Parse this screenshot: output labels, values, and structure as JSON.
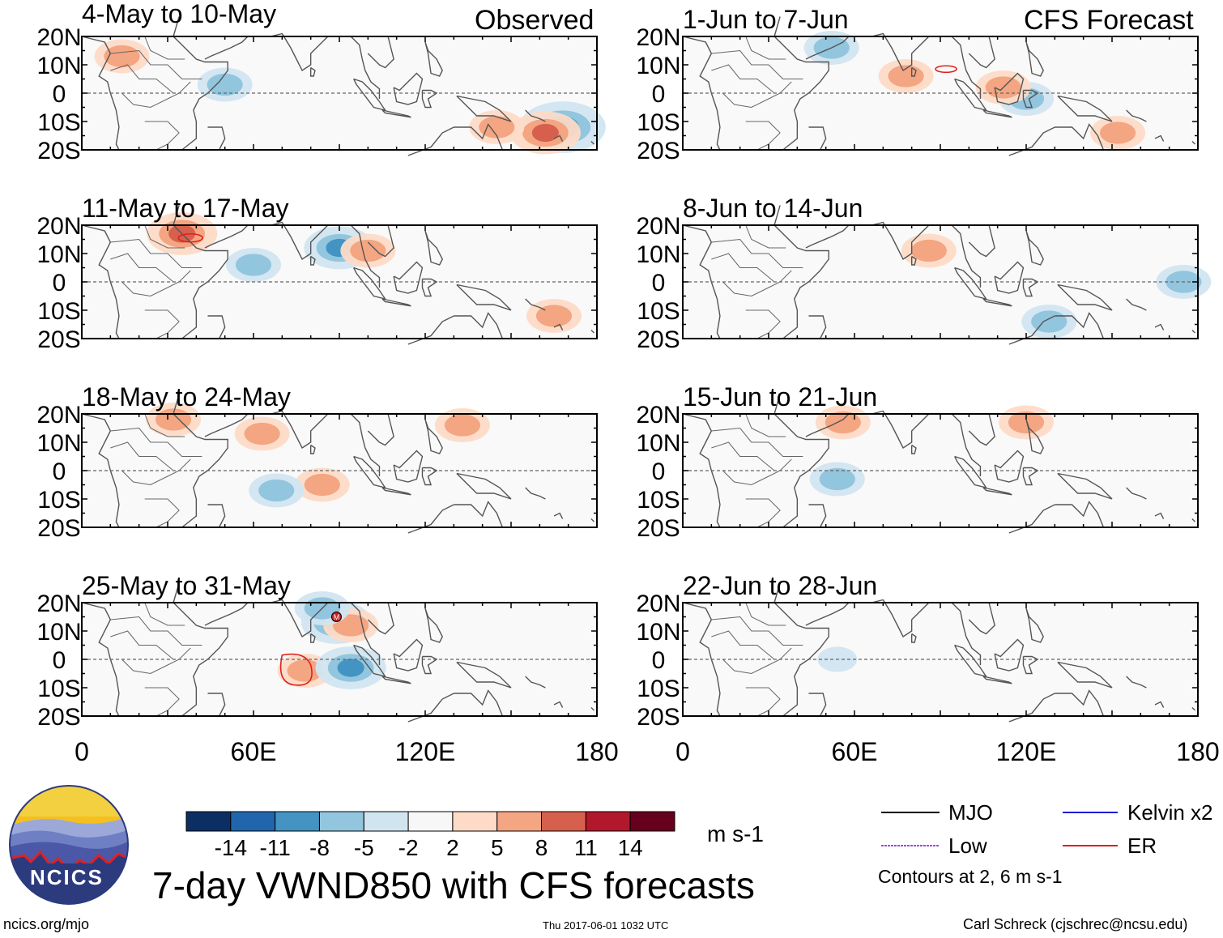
{
  "title": "7-day VWND850 with CFS forecasts",
  "left_column_label": "Observed",
  "right_column_label": "CFS Forecast",
  "logo_text": "NCICS",
  "url": "ncics.org/mjo",
  "timestamp": "Thu 2017-06-01 1032 UTC",
  "credit": "Carl Schreck (cjschrec@ncsu.edu)",
  "units": "m s-1",
  "contour_note": "Contours at 2, 6 m s-1",
  "line_legend": [
    {
      "label": "MJO",
      "color": "#000000"
    },
    {
      "label": "Kelvin x2",
      "color": "#1d1dd6"
    },
    {
      "label": "Low",
      "color": "#9a4be0"
    },
    {
      "label": "ER",
      "color": "#e0201d"
    }
  ],
  "colorbar": {
    "colors": [
      "#0c2f63",
      "#2166ac",
      "#4393c3",
      "#92c5de",
      "#d1e5f0",
      "#f7f7f7",
      "#fddbc7",
      "#f4a582",
      "#d6604d",
      "#b2182b",
      "#67001f"
    ],
    "labels": [
      "-14",
      "-11",
      "-8",
      "-5",
      "-2",
      "2",
      "5",
      "8",
      "11",
      "14"
    ]
  },
  "map_labels": {
    "ocean_note": "M"
  },
  "chart_data": [
    {
      "type": "heatmap",
      "panel": "observed",
      "period": "4-May to 10-May",
      "x_ticks": [
        "0",
        "60E",
        "120E",
        "180"
      ],
      "y_ticks": [
        "20N",
        "10N",
        "0",
        "10S",
        "20S"
      ],
      "xlim": [
        0,
        180
      ],
      "ylim": [
        -20,
        20
      ],
      "features": [
        {
          "sign": "neg",
          "lon": 168,
          "lat": -12,
          "value": -11
        },
        {
          "sign": "pos",
          "lon": 162,
          "lat": -14,
          "value": 8
        },
        {
          "sign": "neg",
          "lon": 50,
          "lat": 3,
          "value": -5
        },
        {
          "sign": "pos",
          "lon": 145,
          "lat": -12,
          "value": 5
        },
        {
          "sign": "pos",
          "lon": 14,
          "lat": 13,
          "value": 5
        }
      ]
    },
    {
      "type": "heatmap",
      "panel": "observed",
      "period": "11-May to 17-May",
      "x_ticks": [
        "0",
        "60E",
        "120E",
        "180"
      ],
      "y_ticks": [
        "20N",
        "10N",
        "0",
        "10S",
        "20S"
      ],
      "xlim": [
        0,
        180
      ],
      "ylim": [
        -20,
        20
      ],
      "features": [
        {
          "sign": "pos",
          "lon": 35,
          "lat": 17,
          "value": 8
        },
        {
          "sign": "neg",
          "lon": 90,
          "lat": 12,
          "value": -8
        },
        {
          "sign": "pos",
          "lon": 100,
          "lat": 11,
          "value": 5
        },
        {
          "sign": "neg",
          "lon": 60,
          "lat": 6,
          "value": -5
        },
        {
          "sign": "pos",
          "lon": 165,
          "lat": -12,
          "value": 5
        }
      ]
    },
    {
      "type": "heatmap",
      "panel": "observed",
      "period": "18-May to 24-May",
      "x_ticks": [
        "0",
        "60E",
        "120E",
        "180"
      ],
      "y_ticks": [
        "20N",
        "10N",
        "0",
        "10S",
        "20S"
      ],
      "xlim": [
        0,
        180
      ],
      "ylim": [
        -20,
        20
      ],
      "features": [
        {
          "sign": "pos",
          "lon": 84,
          "lat": -5,
          "value": 5
        },
        {
          "sign": "pos",
          "lon": 63,
          "lat": 13,
          "value": 5
        },
        {
          "sign": "pos",
          "lon": 133,
          "lat": 16,
          "value": 5
        },
        {
          "sign": "neg",
          "lon": 68,
          "lat": -7,
          "value": -5
        },
        {
          "sign": "pos",
          "lon": 32,
          "lat": 18,
          "value": 5
        }
      ]
    },
    {
      "type": "heatmap",
      "panel": "observed",
      "period": "25-May to 31-May",
      "x_ticks": [
        "0",
        "60E",
        "120E",
        "180"
      ],
      "y_ticks": [
        "20N",
        "10N",
        "0",
        "10S",
        "20S"
      ],
      "xlim": [
        0,
        180
      ],
      "ylim": [
        -20,
        20
      ],
      "features": [
        {
          "sign": "pos",
          "lon": 78,
          "lat": -4,
          "value": 5
        },
        {
          "sign": "neg",
          "lon": 94,
          "lat": -3,
          "value": -8
        },
        {
          "sign": "neg",
          "lon": 89,
          "lat": 13,
          "value": -8
        },
        {
          "sign": "pos",
          "lon": 94,
          "lat": 12,
          "value": 5
        },
        {
          "sign": "neg",
          "lon": 84,
          "lat": 18,
          "value": -5
        }
      ]
    },
    {
      "type": "heatmap",
      "panel": "forecast",
      "period": "1-Jun to 7-Jun",
      "x_ticks": [
        "0",
        "60E",
        "120E",
        "180"
      ],
      "y_ticks": [
        "20N",
        "10N",
        "0",
        "10S",
        "20S"
      ],
      "xlim": [
        0,
        180
      ],
      "ylim": [
        -20,
        20
      ],
      "features": [
        {
          "sign": "pos",
          "lon": 152,
          "lat": -14,
          "value": 5
        },
        {
          "sign": "neg",
          "lon": 120,
          "lat": -2,
          "value": -5
        },
        {
          "sign": "pos",
          "lon": 112,
          "lat": 2,
          "value": 5
        },
        {
          "sign": "neg",
          "lon": 52,
          "lat": 16,
          "value": -5
        },
        {
          "sign": "pos",
          "lon": 78,
          "lat": 6,
          "value": 5
        }
      ]
    },
    {
      "type": "heatmap",
      "panel": "forecast",
      "period": "8-Jun to 14-Jun",
      "x_ticks": [
        "0",
        "60E",
        "120E",
        "180"
      ],
      "y_ticks": [
        "20N",
        "10N",
        "0",
        "10S",
        "20S"
      ],
      "xlim": [
        0,
        180
      ],
      "ylim": [
        -20,
        20
      ],
      "features": [
        {
          "sign": "pos",
          "lon": 86,
          "lat": 11,
          "value": 5
        },
        {
          "sign": "neg",
          "lon": 128,
          "lat": -14,
          "value": -5
        },
        {
          "sign": "neg",
          "lon": 175,
          "lat": 0,
          "value": -5
        }
      ]
    },
    {
      "type": "heatmap",
      "panel": "forecast",
      "period": "15-Jun to 21-Jun",
      "x_ticks": [
        "0",
        "60E",
        "120E",
        "180"
      ],
      "y_ticks": [
        "20N",
        "10N",
        "0",
        "10S",
        "20S"
      ],
      "xlim": [
        0,
        180
      ],
      "ylim": [
        -20,
        20
      ],
      "features": [
        {
          "sign": "neg",
          "lon": 54,
          "lat": -3,
          "value": -5
        },
        {
          "sign": "pos",
          "lon": 120,
          "lat": 17,
          "value": 5
        },
        {
          "sign": "pos",
          "lon": 56,
          "lat": 17,
          "value": 5
        }
      ]
    },
    {
      "type": "heatmap",
      "panel": "forecast",
      "period": "22-Jun to 28-Jun",
      "x_ticks": [
        "0",
        "60E",
        "120E",
        "180"
      ],
      "y_ticks": [
        "20N",
        "10N",
        "0",
        "10S",
        "20S"
      ],
      "xlim": [
        0,
        180
      ],
      "ylim": [
        -20,
        20
      ],
      "features": [
        {
          "sign": "neg",
          "lon": 54,
          "lat": 0,
          "value": -2
        }
      ]
    }
  ]
}
